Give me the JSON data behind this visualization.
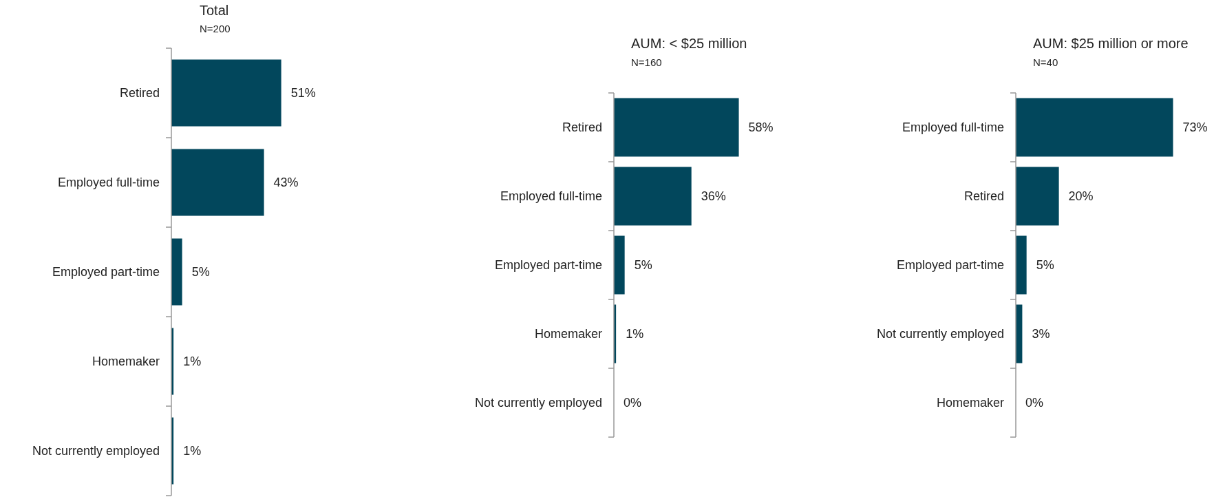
{
  "chart_data": [
    {
      "type": "bar",
      "orientation": "horizontal",
      "title": "Total",
      "subtitle": "N=200",
      "categories": [
        "Retired",
        "Employed full-time",
        "Employed part-time",
        "Homemaker",
        "Not currently employed"
      ],
      "values": [
        51,
        43,
        5,
        1,
        1
      ],
      "value_labels": [
        "51%",
        "43%",
        "5%",
        "1%",
        "1%"
      ],
      "color": "#02475c"
    },
    {
      "type": "bar",
      "orientation": "horizontal",
      "title": "AUM: < $25 million",
      "subtitle": "N=160",
      "categories": [
        "Retired",
        "Employed full-time",
        "Employed part-time",
        "Homemaker",
        "Not currently employed"
      ],
      "values": [
        58,
        36,
        5,
        1,
        0
      ],
      "value_labels": [
        "58%",
        "36%",
        "5%",
        "1%",
        "0%"
      ],
      "color": "#02475c"
    },
    {
      "type": "bar",
      "orientation": "horizontal",
      "title": "AUM: $25 million or more",
      "subtitle": "N=40",
      "categories": [
        "Employed full-time",
        "Retired",
        "Employed part-time",
        "Not currently employed",
        "Homemaker"
      ],
      "values": [
        73,
        20,
        5,
        3,
        0
      ],
      "value_labels": [
        "73%",
        "20%",
        "5%",
        "3%",
        "0%"
      ],
      "color": "#02475c"
    }
  ]
}
